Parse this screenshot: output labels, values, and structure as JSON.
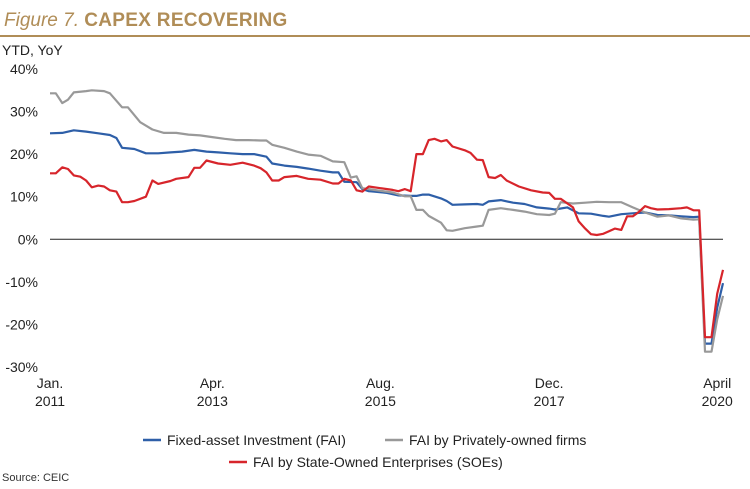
{
  "figure": {
    "label": "Figure 7.",
    "title": "CAPEX RECOVERING"
  },
  "unit_label": "YTD, YoY",
  "source": "Source: CEIC",
  "chart_data": {
    "type": "line",
    "title": "CAPEX RECOVERING",
    "ylabel": "YTD, YoY",
    "ylim": [
      -30,
      40
    ],
    "yticks": [
      "40%",
      "30%",
      "20%",
      "10%",
      "0%",
      "-10%",
      "-20%",
      "-30%"
    ],
    "ytick_values": [
      40,
      30,
      20,
      10,
      0,
      -10,
      -20,
      -30
    ],
    "xlim": [
      2011.0,
      2020.33
    ],
    "xticks": [
      {
        "value": 2011.0,
        "line1": "Jan.",
        "line2": "2011"
      },
      {
        "value": 2013.25,
        "line1": "Apr.",
        "line2": "2013"
      },
      {
        "value": 2015.58,
        "line1": "Aug.",
        "line2": "2015"
      },
      {
        "value": 2017.92,
        "line1": "Dec.",
        "line2": "2017"
      },
      {
        "value": 2020.25,
        "line1": "April",
        "line2": "2020"
      }
    ],
    "grid": false,
    "legend_position": "bottom",
    "series": [
      {
        "name": "Fixed-asset Investment (FAI)",
        "color": "#2e5fa8",
        "points": [
          [
            2011.0,
            24.9
          ],
          [
            2011.17,
            25.0
          ],
          [
            2011.33,
            25.6
          ],
          [
            2011.5,
            25.3
          ],
          [
            2011.67,
            24.9
          ],
          [
            2011.83,
            24.5
          ],
          [
            2011.92,
            23.8
          ],
          [
            2012.0,
            21.5
          ],
          [
            2012.17,
            21.2
          ],
          [
            2012.33,
            20.2
          ],
          [
            2012.5,
            20.2
          ],
          [
            2012.67,
            20.4
          ],
          [
            2012.83,
            20.6
          ],
          [
            2013.0,
            21.0
          ],
          [
            2013.17,
            20.6
          ],
          [
            2013.33,
            20.4
          ],
          [
            2013.5,
            20.2
          ],
          [
            2013.67,
            20.0
          ],
          [
            2013.83,
            20.0
          ],
          [
            2014.0,
            19.4
          ],
          [
            2014.08,
            17.8
          ],
          [
            2014.25,
            17.3
          ],
          [
            2014.42,
            17.0
          ],
          [
            2014.58,
            16.6
          ],
          [
            2014.75,
            16.1
          ],
          [
            2014.92,
            15.7
          ],
          [
            2015.0,
            15.7
          ],
          [
            2015.08,
            13.5
          ],
          [
            2015.25,
            13.4
          ],
          [
            2015.33,
            11.8
          ],
          [
            2015.42,
            11.3
          ],
          [
            2015.5,
            11.2
          ],
          [
            2015.67,
            10.9
          ],
          [
            2015.83,
            10.3
          ],
          [
            2016.0,
            10.2
          ],
          [
            2016.08,
            10.2
          ],
          [
            2016.17,
            10.5
          ],
          [
            2016.25,
            10.5
          ],
          [
            2016.42,
            9.6
          ],
          [
            2016.5,
            9.0
          ],
          [
            2016.58,
            8.1
          ],
          [
            2016.75,
            8.2
          ],
          [
            2016.92,
            8.3
          ],
          [
            2017.0,
            8.1
          ],
          [
            2017.08,
            8.9
          ],
          [
            2017.25,
            9.2
          ],
          [
            2017.42,
            8.6
          ],
          [
            2017.58,
            8.3
          ],
          [
            2017.75,
            7.5
          ],
          [
            2017.92,
            7.2
          ],
          [
            2018.0,
            7.0
          ],
          [
            2018.17,
            7.5
          ],
          [
            2018.33,
            6.1
          ],
          [
            2018.5,
            6.0
          ],
          [
            2018.67,
            5.5
          ],
          [
            2018.75,
            5.3
          ],
          [
            2018.92,
            5.9
          ],
          [
            2019.08,
            6.1
          ],
          [
            2019.25,
            6.3
          ],
          [
            2019.42,
            5.7
          ],
          [
            2019.58,
            5.6
          ],
          [
            2019.75,
            5.4
          ],
          [
            2019.92,
            5.2
          ],
          [
            2020.0,
            5.3
          ],
          [
            2020.08,
            -24.5
          ],
          [
            2020.17,
            -24.5
          ],
          [
            2020.25,
            -16.1
          ],
          [
            2020.33,
            -10.3
          ]
        ]
      },
      {
        "name": "FAI by Privately-owned firms",
        "color": "#999999",
        "points": [
          [
            2011.0,
            34.3
          ],
          [
            2011.08,
            34.3
          ],
          [
            2011.17,
            32.0
          ],
          [
            2011.25,
            32.8
          ],
          [
            2011.33,
            34.5
          ],
          [
            2011.5,
            34.8
          ],
          [
            2011.58,
            35.0
          ],
          [
            2011.75,
            34.8
          ],
          [
            2011.83,
            34.3
          ],
          [
            2012.0,
            31.0
          ],
          [
            2012.08,
            31.0
          ],
          [
            2012.25,
            27.5
          ],
          [
            2012.42,
            25.8
          ],
          [
            2012.58,
            25.0
          ],
          [
            2012.75,
            25.0
          ],
          [
            2012.92,
            24.6
          ],
          [
            2013.08,
            24.4
          ],
          [
            2013.25,
            24.0
          ],
          [
            2013.42,
            23.6
          ],
          [
            2013.58,
            23.3
          ],
          [
            2013.75,
            23.3
          ],
          [
            2013.92,
            23.2
          ],
          [
            2014.0,
            23.2
          ],
          [
            2014.08,
            22.2
          ],
          [
            2014.25,
            21.5
          ],
          [
            2014.42,
            20.6
          ],
          [
            2014.58,
            19.9
          ],
          [
            2014.75,
            19.6
          ],
          [
            2014.92,
            18.3
          ],
          [
            2015.08,
            18.1
          ],
          [
            2015.17,
            14.5
          ],
          [
            2015.25,
            14.8
          ],
          [
            2015.33,
            12.0
          ],
          [
            2015.42,
            11.8
          ],
          [
            2015.58,
            11.4
          ],
          [
            2015.75,
            11.0
          ],
          [
            2015.92,
            10.1
          ],
          [
            2016.0,
            10.1
          ],
          [
            2016.08,
            6.9
          ],
          [
            2016.17,
            6.9
          ],
          [
            2016.25,
            5.5
          ],
          [
            2016.42,
            3.9
          ],
          [
            2016.5,
            2.1
          ],
          [
            2016.58,
            2.0
          ],
          [
            2016.75,
            2.6
          ],
          [
            2016.92,
            3.0
          ],
          [
            2017.0,
            3.2
          ],
          [
            2017.08,
            6.9
          ],
          [
            2017.25,
            7.3
          ],
          [
            2017.42,
            6.9
          ],
          [
            2017.58,
            6.5
          ],
          [
            2017.75,
            5.9
          ],
          [
            2017.92,
            5.7
          ],
          [
            2018.0,
            6.0
          ],
          [
            2018.08,
            8.7
          ],
          [
            2018.25,
            8.4
          ],
          [
            2018.42,
            8.6
          ],
          [
            2018.58,
            8.8
          ],
          [
            2018.75,
            8.7
          ],
          [
            2018.92,
            8.7
          ],
          [
            2019.08,
            7.5
          ],
          [
            2019.25,
            6.3
          ],
          [
            2019.42,
            5.3
          ],
          [
            2019.58,
            5.6
          ],
          [
            2019.75,
            4.9
          ],
          [
            2019.92,
            4.6
          ],
          [
            2020.0,
            4.7
          ],
          [
            2020.08,
            -26.4
          ],
          [
            2020.17,
            -26.4
          ],
          [
            2020.25,
            -18.8
          ],
          [
            2020.33,
            -13.3
          ]
        ]
      },
      {
        "name": "FAI by State-Owned Enterprises (SOEs)",
        "color": "#d7252b",
        "points": [
          [
            2011.0,
            15.5
          ],
          [
            2011.08,
            15.5
          ],
          [
            2011.17,
            16.9
          ],
          [
            2011.25,
            16.5
          ],
          [
            2011.33,
            15.0
          ],
          [
            2011.42,
            14.7
          ],
          [
            2011.5,
            13.8
          ],
          [
            2011.58,
            12.2
          ],
          [
            2011.67,
            12.6
          ],
          [
            2011.75,
            12.4
          ],
          [
            2011.83,
            11.5
          ],
          [
            2011.92,
            11.2
          ],
          [
            2012.0,
            8.7
          ],
          [
            2012.08,
            8.7
          ],
          [
            2012.17,
            9.0
          ],
          [
            2012.33,
            10.0
          ],
          [
            2012.42,
            13.8
          ],
          [
            2012.5,
            13.0
          ],
          [
            2012.67,
            13.7
          ],
          [
            2012.75,
            14.2
          ],
          [
            2012.92,
            14.6
          ],
          [
            2013.0,
            16.8
          ],
          [
            2013.08,
            16.8
          ],
          [
            2013.17,
            18.5
          ],
          [
            2013.33,
            17.8
          ],
          [
            2013.5,
            17.5
          ],
          [
            2013.67,
            18.0
          ],
          [
            2013.83,
            17.3
          ],
          [
            2013.92,
            16.7
          ],
          [
            2014.0,
            15.7
          ],
          [
            2014.08,
            13.8
          ],
          [
            2014.17,
            13.8
          ],
          [
            2014.25,
            14.6
          ],
          [
            2014.42,
            14.9
          ],
          [
            2014.58,
            14.2
          ],
          [
            2014.75,
            14.0
          ],
          [
            2014.92,
            13.1
          ],
          [
            2015.0,
            13.1
          ],
          [
            2015.08,
            14.2
          ],
          [
            2015.17,
            13.8
          ],
          [
            2015.25,
            11.5
          ],
          [
            2015.33,
            11.2
          ],
          [
            2015.42,
            12.4
          ],
          [
            2015.58,
            12.0
          ],
          [
            2015.75,
            11.6
          ],
          [
            2015.83,
            11.3
          ],
          [
            2015.92,
            11.8
          ],
          [
            2016.0,
            11.3
          ],
          [
            2016.08,
            20.0
          ],
          [
            2016.17,
            20.0
          ],
          [
            2016.25,
            23.3
          ],
          [
            2016.33,
            23.6
          ],
          [
            2016.42,
            23.0
          ],
          [
            2016.5,
            23.3
          ],
          [
            2016.58,
            21.8
          ],
          [
            2016.75,
            20.9
          ],
          [
            2016.83,
            20.3
          ],
          [
            2016.92,
            18.7
          ],
          [
            2017.0,
            18.6
          ],
          [
            2017.08,
            14.6
          ],
          [
            2017.17,
            14.4
          ],
          [
            2017.25,
            15.1
          ],
          [
            2017.33,
            13.8
          ],
          [
            2017.5,
            12.4
          ],
          [
            2017.67,
            11.5
          ],
          [
            2017.83,
            11.0
          ],
          [
            2017.92,
            10.9
          ],
          [
            2018.0,
            9.5
          ],
          [
            2018.08,
            9.5
          ],
          [
            2018.25,
            7.5
          ],
          [
            2018.33,
            4.2
          ],
          [
            2018.42,
            2.5
          ],
          [
            2018.5,
            1.2
          ],
          [
            2018.58,
            1.0
          ],
          [
            2018.67,
            1.3
          ],
          [
            2018.75,
            1.9
          ],
          [
            2018.83,
            2.5
          ],
          [
            2018.92,
            2.2
          ],
          [
            2019.0,
            5.4
          ],
          [
            2019.08,
            5.4
          ],
          [
            2019.17,
            6.5
          ],
          [
            2019.25,
            7.8
          ],
          [
            2019.33,
            7.3
          ],
          [
            2019.42,
            7.0
          ],
          [
            2019.58,
            7.1
          ],
          [
            2019.75,
            7.3
          ],
          [
            2019.83,
            7.5
          ],
          [
            2019.92,
            6.8
          ],
          [
            2020.0,
            6.8
          ],
          [
            2020.08,
            -23.0
          ],
          [
            2020.17,
            -23.0
          ],
          [
            2020.25,
            -12.8
          ],
          [
            2020.33,
            -7.2
          ]
        ]
      }
    ]
  }
}
